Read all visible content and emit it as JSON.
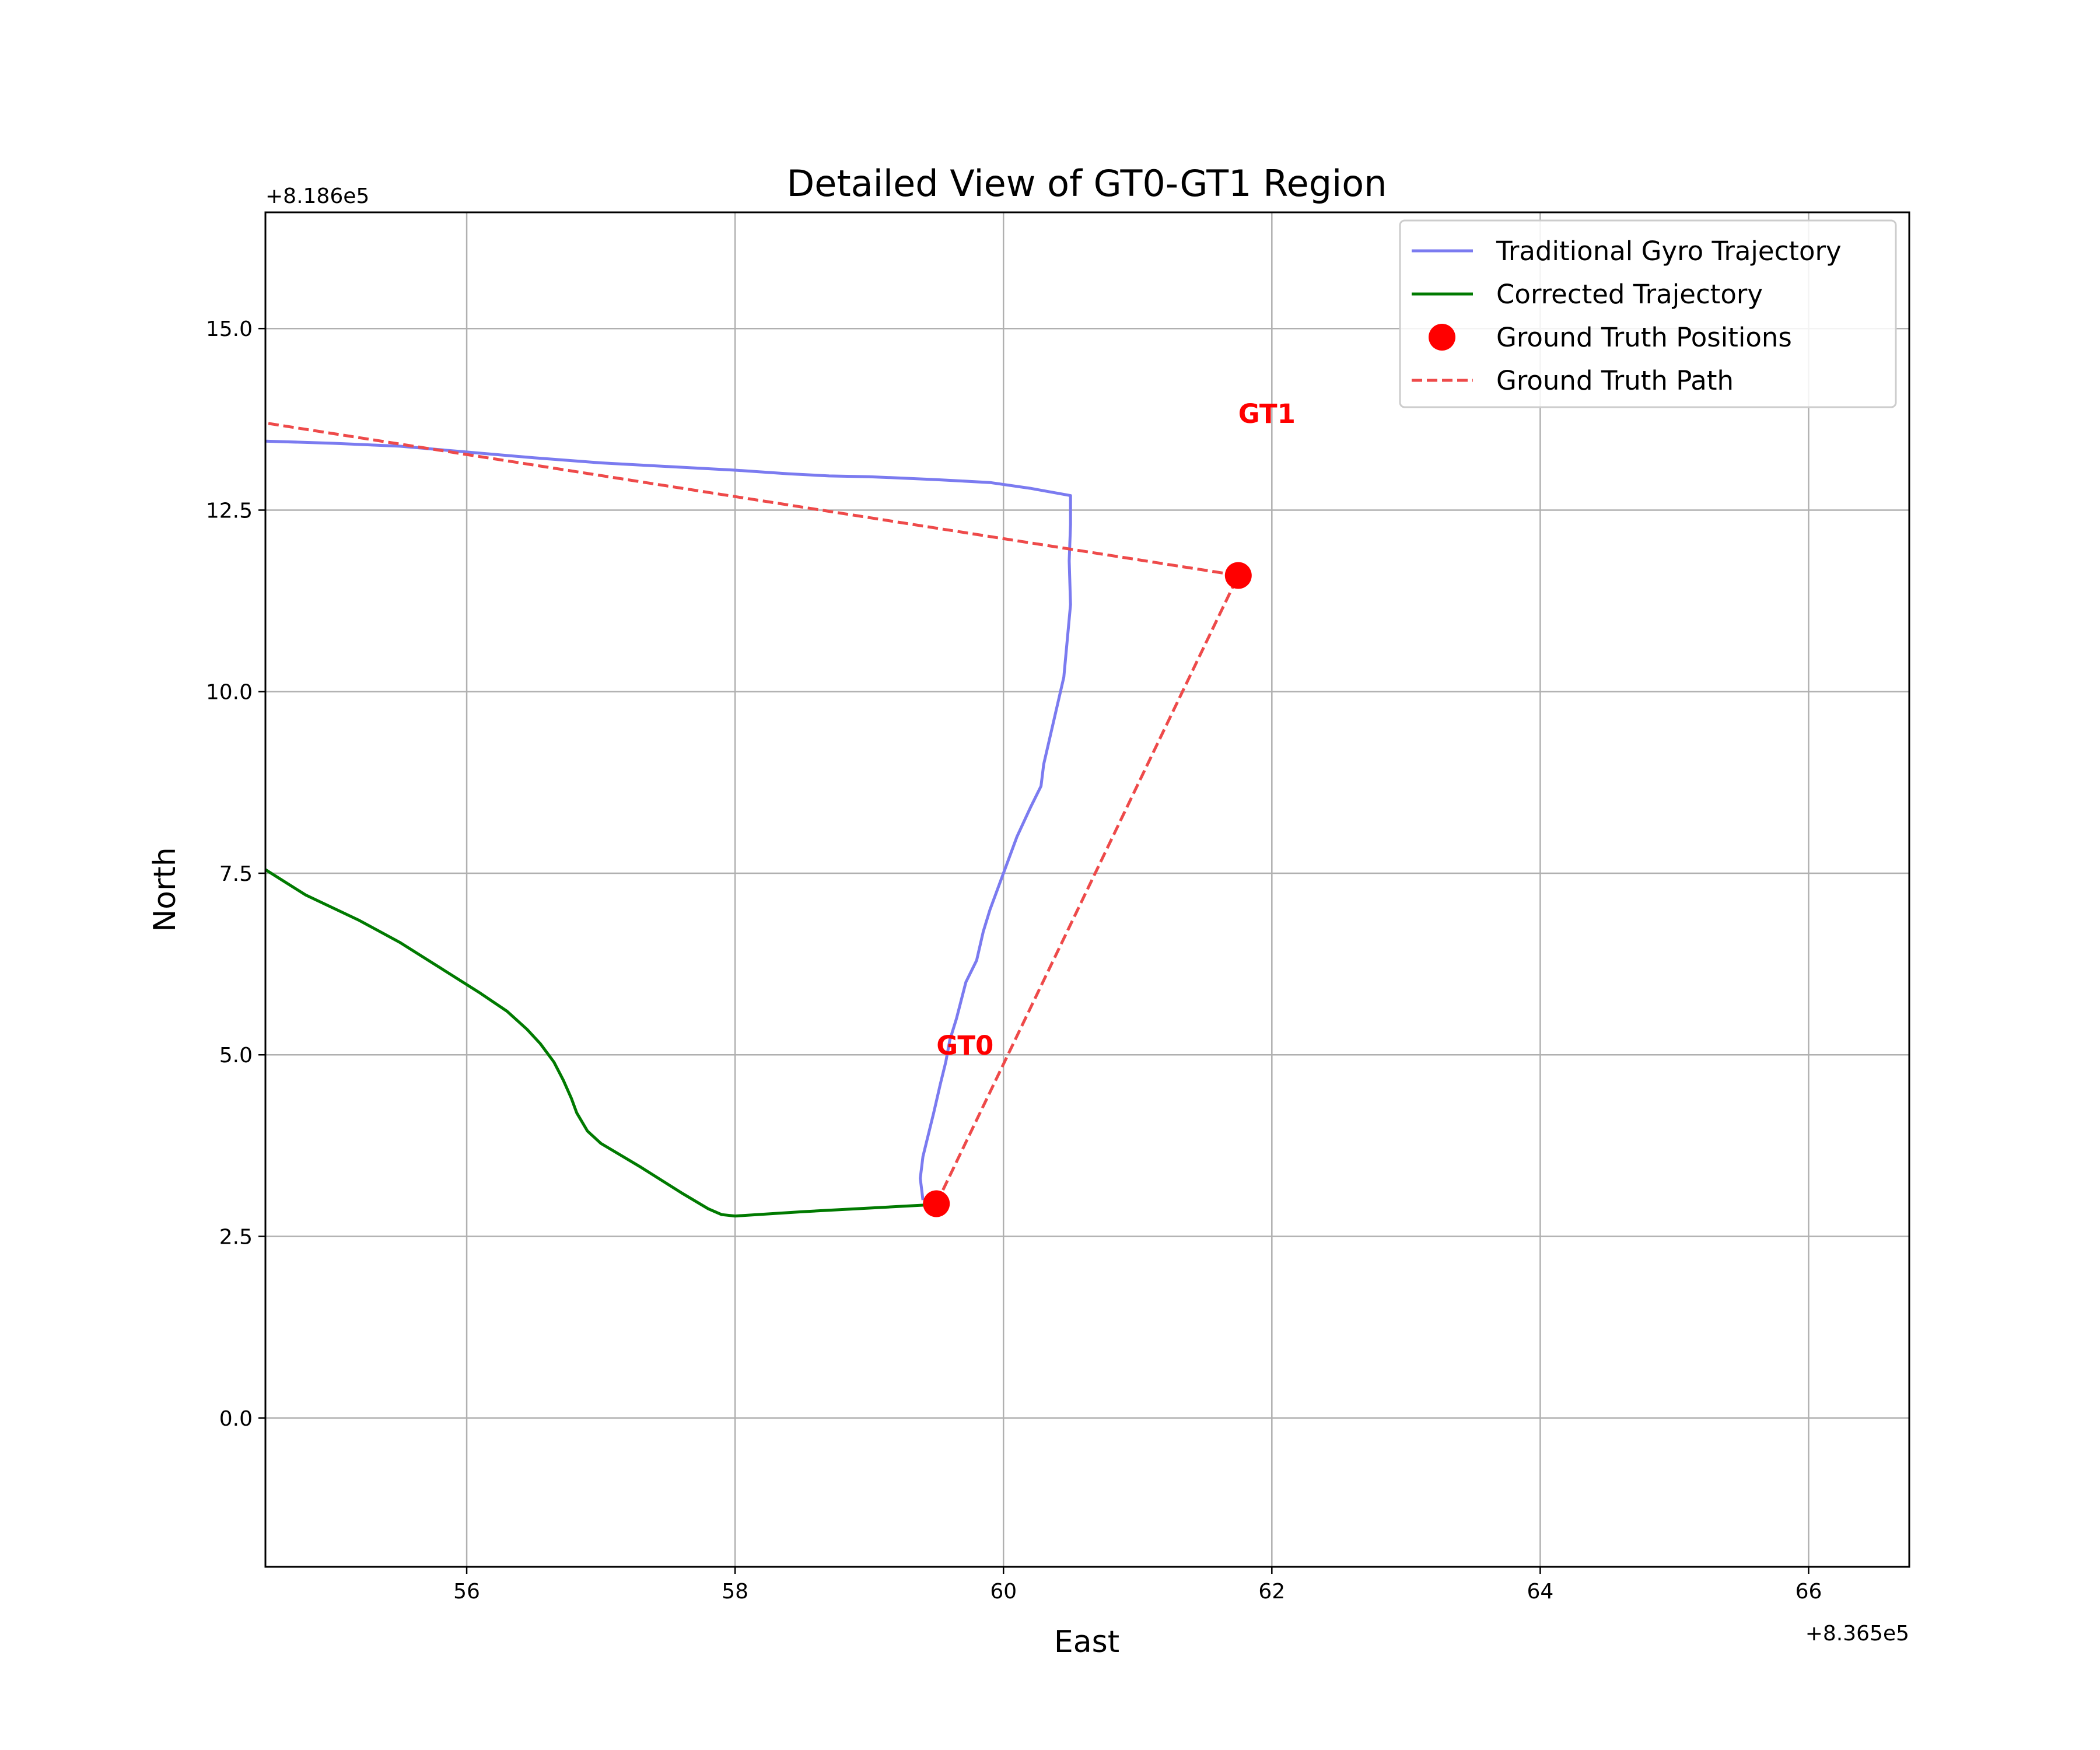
{
  "chart_data": {
    "type": "line",
    "title": "Detailed View of GT0-GT1 Region",
    "xlabel": "East",
    "ylabel": "North",
    "x_offset_label": "+8.365e5",
    "y_offset_label": "+8.186e5",
    "xlim": [
      54.5,
      66.75
    ],
    "ylim": [
      -2.05,
      16.6
    ],
    "x_ticks": [
      56,
      58,
      60,
      62,
      64,
      66
    ],
    "x_tick_labels": [
      "56",
      "58",
      "60",
      "62",
      "64",
      "66"
    ],
    "y_ticks": [
      0.0,
      2.5,
      5.0,
      7.5,
      10.0,
      12.5,
      15.0
    ],
    "y_tick_labels": [
      "0.0",
      "2.5",
      "5.0",
      "7.5",
      "10.0",
      "12.5",
      "15.0"
    ],
    "grid": true,
    "legend_position": "top-right",
    "series": [
      {
        "name": "Traditional Gyro Trajectory",
        "style": "solid",
        "color": "#7b7bf0",
        "points": [
          [
            54.5,
            13.45
          ],
          [
            55.0,
            13.42
          ],
          [
            55.5,
            13.38
          ],
          [
            56.0,
            13.3
          ],
          [
            56.5,
            13.22
          ],
          [
            57.0,
            13.15
          ],
          [
            57.5,
            13.1
          ],
          [
            58.0,
            13.05
          ],
          [
            58.4,
            13.0
          ],
          [
            58.7,
            12.97
          ],
          [
            59.0,
            12.96
          ],
          [
            59.5,
            12.92
          ],
          [
            59.9,
            12.88
          ],
          [
            60.2,
            12.8
          ],
          [
            60.5,
            12.7
          ],
          [
            60.5,
            12.3
          ],
          [
            60.49,
            11.8
          ],
          [
            60.5,
            11.2
          ],
          [
            60.48,
            10.8
          ],
          [
            60.45,
            10.2
          ],
          [
            60.4,
            9.8
          ],
          [
            60.35,
            9.4
          ],
          [
            60.3,
            9.0
          ],
          [
            60.28,
            8.7
          ],
          [
            60.2,
            8.4
          ],
          [
            60.1,
            8.0
          ],
          [
            60.0,
            7.5
          ],
          [
            59.9,
            7.0
          ],
          [
            59.85,
            6.7
          ],
          [
            59.8,
            6.3
          ],
          [
            59.72,
            6.0
          ],
          [
            59.65,
            5.5
          ],
          [
            59.6,
            5.2
          ],
          [
            59.57,
            4.9
          ],
          [
            59.53,
            4.6
          ],
          [
            59.48,
            4.2
          ],
          [
            59.44,
            3.9
          ],
          [
            59.4,
            3.6
          ],
          [
            59.38,
            3.3
          ],
          [
            59.4,
            3.0
          ]
        ]
      },
      {
        "name": "Corrected Trajectory",
        "style": "solid",
        "color": "#007a00",
        "points": [
          [
            54.5,
            7.55
          ],
          [
            54.8,
            7.2
          ],
          [
            55.2,
            6.85
          ],
          [
            55.5,
            6.55
          ],
          [
            55.8,
            6.2
          ],
          [
            56.1,
            5.85
          ],
          [
            56.3,
            5.6
          ],
          [
            56.45,
            5.35
          ],
          [
            56.55,
            5.15
          ],
          [
            56.65,
            4.9
          ],
          [
            56.72,
            4.65
          ],
          [
            56.78,
            4.4
          ],
          [
            56.82,
            4.2
          ],
          [
            56.9,
            3.95
          ],
          [
            57.0,
            3.78
          ],
          [
            57.3,
            3.45
          ],
          [
            57.6,
            3.1
          ],
          [
            57.8,
            2.88
          ],
          [
            57.9,
            2.8
          ],
          [
            58.0,
            2.78
          ],
          [
            58.5,
            2.84
          ],
          [
            59.0,
            2.89
          ],
          [
            59.5,
            2.94
          ]
        ]
      },
      {
        "name": "Ground Truth Path",
        "style": "dashed",
        "color": "#ee4a4a",
        "points": [
          [
            59.5,
            2.95
          ],
          [
            61.75,
            11.6
          ],
          [
            54.5,
            13.7
          ]
        ]
      }
    ],
    "scatter": {
      "name": "Ground Truth Positions",
      "color": "#ff0000",
      "points": [
        [
          59.5,
          2.95
        ],
        [
          61.75,
          11.6
        ]
      ]
    },
    "annotations": [
      {
        "text": "GT0",
        "x": 59.5,
        "y": 5.0,
        "color": "#ff0000"
      },
      {
        "text": "GT1",
        "x": 61.75,
        "y": 13.7,
        "color": "#ff0000"
      }
    ]
  }
}
